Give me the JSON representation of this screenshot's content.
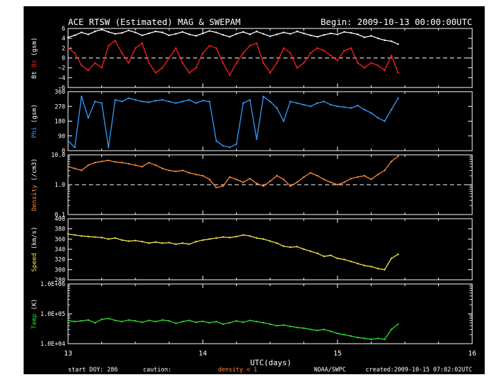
{
  "header": {
    "title": "ACE RTSW (Estimated) MAG & SWEPAM",
    "begin": "Begin: 2009-10-13 00:00:00UTC"
  },
  "footer": {
    "start_doy": "start DOY: 286",
    "caution": "caution:",
    "density_note": "density < 1",
    "agency": "NOAA/SWPC",
    "created": "created:2009-10-15 07:02:02UTC"
  },
  "colors": {
    "bt": "#ffffff",
    "bz": "#ff2020",
    "phi": "#33a0ff",
    "density": "#ff8c3a",
    "speed": "#f2e64a",
    "temp": "#33dd33",
    "axes": "#ffffff",
    "background": "#000000"
  },
  "chart_data": {
    "type": "line",
    "xlabel": "UTC(days)",
    "xlim": [
      13,
      16
    ],
    "x_ticks": [
      "13",
      "14",
      "15",
      "16"
    ],
    "panels": [
      {
        "id": "mag",
        "ylabel_parts": [
          {
            "text": "Bt",
            "color": "#ffffff"
          },
          {
            "text": "Bz",
            "color": "#ff2020"
          },
          {
            "text": "(gsm)",
            "color": "#ffffff"
          }
        ],
        "scale": "linear",
        "ylim": [
          -6,
          6
        ],
        "ticks": [
          {
            "v": 6,
            "label": "6"
          },
          {
            "v": 4,
            "label": "4"
          },
          {
            "v": 2,
            "label": "2"
          },
          {
            "v": 0,
            "label": "0"
          },
          {
            "v": -2,
            "label": "−2"
          },
          {
            "v": -4,
            "label": "−4"
          },
          {
            "v": -6,
            "label": "−6"
          }
        ],
        "ref_line": 0,
        "series": [
          {
            "name": "Bt",
            "color": "#ffffff",
            "x": [
              13.0,
              13.05,
              13.1,
              13.15,
              13.2,
              13.25,
              13.3,
              13.35,
              13.4,
              13.45,
              13.5,
              13.55,
              13.6,
              13.65,
              13.7,
              13.75,
              13.8,
              13.85,
              13.9,
              13.95,
              14.0,
              14.05,
              14.1,
              14.15,
              14.2,
              14.25,
              14.3,
              14.35,
              14.4,
              14.45,
              14.5,
              14.55,
              14.6,
              14.65,
              14.7,
              14.75,
              14.8,
              14.85,
              14.9,
              14.95,
              15.0,
              15.05,
              15.1,
              15.15,
              15.2,
              15.25,
              15.3,
              15.35,
              15.4,
              15.45
            ],
            "y": [
              4.2,
              4.6,
              5.2,
              4.8,
              5.4,
              5.8,
              5.3,
              4.9,
              5.1,
              5.6,
              5.2,
              4.6,
              5.0,
              5.4,
              5.2,
              4.6,
              4.9,
              5.3,
              4.8,
              4.5,
              5.0,
              5.5,
              5.2,
              4.7,
              4.3,
              4.9,
              5.3,
              4.8,
              5.4,
              4.9,
              4.4,
              4.8,
              5.2,
              4.9,
              5.4,
              5.0,
              4.6,
              4.3,
              4.7,
              5.0,
              4.8,
              5.3,
              5.1,
              4.8,
              4.2,
              4.5,
              4.0,
              3.6,
              3.4,
              2.8
            ]
          },
          {
            "name": "Bz",
            "color": "#ff2020",
            "x": [
              13.0,
              13.05,
              13.1,
              13.15,
              13.2,
              13.25,
              13.3,
              13.35,
              13.4,
              13.45,
              13.5,
              13.55,
              13.6,
              13.65,
              13.7,
              13.75,
              13.8,
              13.85,
              13.9,
              13.95,
              14.0,
              14.05,
              14.1,
              14.15,
              14.2,
              14.25,
              14.3,
              14.35,
              14.4,
              14.45,
              14.5,
              14.55,
              14.6,
              14.65,
              14.7,
              14.75,
              14.8,
              14.85,
              14.9,
              14.95,
              15.0,
              15.05,
              15.1,
              15.15,
              15.2,
              15.25,
              15.3,
              15.35,
              15.4,
              15.45
            ],
            "y": [
              2.0,
              1.0,
              -1.5,
              -2.5,
              -1.0,
              -2.0,
              2.5,
              3.5,
              1.0,
              -1.0,
              2.0,
              3.0,
              -1.0,
              -3.0,
              -2.0,
              0.0,
              2.0,
              -1.0,
              -3.0,
              -2.0,
              1.0,
              2.5,
              2.0,
              -1.0,
              -3.5,
              -1.0,
              1.0,
              2.5,
              3.0,
              -1.0,
              -3.0,
              -1.0,
              2.0,
              1.0,
              -2.0,
              -1.0,
              1.0,
              2.0,
              1.5,
              0.5,
              -0.5,
              1.5,
              2.0,
              -1.0,
              -2.0,
              -1.0,
              -1.5,
              -2.5,
              0.5,
              -3.0
            ]
          }
        ]
      },
      {
        "id": "phi",
        "ylabel_parts": [
          {
            "text": "Phi",
            "color": "#33a0ff"
          },
          {
            "text": "(gsm)",
            "color": "#ffffff"
          }
        ],
        "scale": "linear",
        "ylim": [
          0,
          360
        ],
        "ticks": [
          {
            "v": 360,
            "label": "360"
          },
          {
            "v": 270,
            "label": "270"
          },
          {
            "v": 180,
            "label": "180"
          },
          {
            "v": 90,
            "label": "90"
          },
          {
            "v": 0,
            "label": "0"
          }
        ],
        "series": [
          {
            "name": "Phi",
            "color": "#33a0ff",
            "x": [
              13.0,
              13.05,
              13.1,
              13.15,
              13.2,
              13.25,
              13.3,
              13.35,
              13.4,
              13.45,
              13.5,
              13.55,
              13.6,
              13.65,
              13.7,
              13.75,
              13.8,
              13.85,
              13.9,
              13.95,
              14.0,
              14.05,
              14.1,
              14.15,
              14.2,
              14.25,
              14.3,
              14.35,
              14.4,
              14.45,
              14.5,
              14.55,
              14.6,
              14.65,
              14.7,
              14.75,
              14.8,
              14.85,
              14.9,
              14.95,
              15.0,
              15.05,
              15.1,
              15.15,
              15.2,
              15.25,
              15.3,
              15.35,
              15.4,
              15.45
            ],
            "y": [
              60,
              20,
              330,
              200,
              300,
              290,
              20,
              310,
              300,
              320,
              310,
              300,
              295,
              305,
              310,
              300,
              290,
              300,
              310,
              290,
              305,
              300,
              60,
              30,
              20,
              40,
              290,
              310,
              70,
              330,
              300,
              260,
              180,
              300,
              290,
              280,
              270,
              290,
              300,
              280,
              270,
              265,
              260,
              275,
              250,
              230,
              200,
              180,
              250,
              320
            ]
          }
        ]
      },
      {
        "id": "density",
        "ylabel_parts": [
          {
            "text": "Density",
            "color": "#ff8c3a"
          },
          {
            "text": "(/cm3)",
            "color": "#ffffff"
          }
        ],
        "scale": "log",
        "ylim": [
          0.1,
          10.0
        ],
        "ticks": [
          {
            "v": 10,
            "label": "10.0"
          },
          {
            "v": 1,
            "label": "1.0"
          },
          {
            "v": 0.1,
            "label": "0.1"
          }
        ],
        "ref_line": 1,
        "series": [
          {
            "name": "Density",
            "color": "#ff8c3a",
            "x": [
              13.0,
              13.05,
              13.1,
              13.15,
              13.2,
              13.25,
              13.3,
              13.35,
              13.4,
              13.45,
              13.5,
              13.55,
              13.6,
              13.65,
              13.7,
              13.75,
              13.8,
              13.85,
              13.9,
              13.95,
              14.0,
              14.05,
              14.1,
              14.15,
              14.2,
              14.25,
              14.3,
              14.35,
              14.4,
              14.45,
              14.5,
              14.55,
              14.6,
              14.65,
              14.7,
              14.75,
              14.8,
              14.85,
              14.9,
              14.95,
              15.0,
              15.05,
              15.1,
              15.15,
              15.2,
              15.25,
              15.3,
              15.35,
              15.4,
              15.45
            ],
            "y": [
              4.0,
              3.5,
              3.0,
              4.5,
              5.5,
              6.0,
              6.5,
              5.8,
              5.5,
              5.0,
              4.5,
              4.0,
              5.5,
              4.5,
              3.5,
              3.0,
              2.8,
              3.0,
              2.5,
              2.2,
              2.0,
              1.5,
              0.8,
              0.9,
              1.8,
              1.5,
              1.2,
              1.6,
              1.1,
              0.9,
              1.3,
              2.0,
              1.5,
              0.9,
              1.2,
              1.8,
              2.5,
              2.0,
              1.5,
              1.2,
              1.0,
              1.2,
              1.6,
              1.8,
              2.0,
              1.5,
              2.2,
              3.0,
              6.0,
              9.0
            ]
          }
        ]
      },
      {
        "id": "speed",
        "ylabel_parts": [
          {
            "text": "Speed",
            "color": "#f2e64a"
          },
          {
            "text": "(km/s)",
            "color": "#ffffff"
          }
        ],
        "scale": "linear",
        "ylim": [
          280,
          400
        ],
        "ticks": [
          {
            "v": 400,
            "label": "400"
          },
          {
            "v": 380,
            "label": "380"
          },
          {
            "v": 360,
            "label": "360"
          },
          {
            "v": 340,
            "label": "340"
          },
          {
            "v": 320,
            "label": "320"
          },
          {
            "v": 300,
            "label": "300"
          },
          {
            "v": 280,
            "label": "280"
          }
        ],
        "series": [
          {
            "name": "Speed",
            "color": "#f2e64a",
            "x": [
              13.0,
              13.05,
              13.1,
              13.15,
              13.2,
              13.25,
              13.3,
              13.35,
              13.4,
              13.45,
              13.5,
              13.55,
              13.6,
              13.65,
              13.7,
              13.75,
              13.8,
              13.85,
              13.9,
              13.95,
              14.0,
              14.05,
              14.1,
              14.15,
              14.2,
              14.25,
              14.3,
              14.35,
              14.4,
              14.45,
              14.5,
              14.55,
              14.6,
              14.65,
              14.7,
              14.75,
              14.8,
              14.85,
              14.9,
              14.95,
              15.0,
              15.05,
              15.1,
              15.15,
              15.2,
              15.25,
              15.3,
              15.35,
              15.4,
              15.45
            ],
            "y": [
              370,
              368,
              366,
              365,
              364,
              363,
              360,
              362,
              358,
              356,
              357,
              355,
              352,
              354,
              352,
              353,
              350,
              352,
              350,
              355,
              358,
              360,
              362,
              364,
              363,
              365,
              368,
              366,
              362,
              360,
              356,
              352,
              346,
              344,
              345,
              340,
              336,
              332,
              326,
              328,
              322,
              320,
              316,
              312,
              308,
              306,
              302,
              300,
              322,
              330
            ]
          }
        ]
      },
      {
        "id": "temp",
        "ylabel_parts": [
          {
            "text": "Temp",
            "color": "#33dd33"
          },
          {
            "text": "(K)",
            "color": "#ffffff"
          }
        ],
        "scale": "log",
        "ylim": [
          10000,
          1000000
        ],
        "ticks": [
          {
            "v": 1000000,
            "label": "1.0E+06"
          },
          {
            "v": 100000,
            "label": "1.0E+05"
          },
          {
            "v": 10000,
            "label": "1.0E+04"
          }
        ],
        "series": [
          {
            "name": "Temp",
            "color": "#33dd33",
            "x": [
              13.0,
              13.05,
              13.1,
              13.15,
              13.2,
              13.25,
              13.3,
              13.35,
              13.4,
              13.45,
              13.5,
              13.55,
              13.6,
              13.65,
              13.7,
              13.75,
              13.8,
              13.85,
              13.9,
              13.95,
              14.0,
              14.05,
              14.1,
              14.15,
              14.2,
              14.25,
              14.3,
              14.35,
              14.4,
              14.45,
              14.5,
              14.55,
              14.6,
              14.65,
              14.7,
              14.75,
              14.8,
              14.85,
              14.9,
              14.95,
              15.0,
              15.05,
              15.1,
              15.15,
              15.2,
              15.25,
              15.3,
              15.35,
              15.4,
              15.45
            ],
            "y": [
              60000,
              55000,
              58000,
              62000,
              50000,
              65000,
              70000,
              60000,
              55000,
              62000,
              58000,
              52000,
              60000,
              55000,
              62000,
              58000,
              48000,
              55000,
              60000,
              52000,
              56000,
              50000,
              55000,
              45000,
              50000,
              58000,
              52000,
              60000,
              55000,
              50000,
              45000,
              40000,
              42000,
              38000,
              35000,
              33000,
              30000,
              28000,
              30000,
              26000,
              22000,
              20000,
              18000,
              16000,
              15000,
              14000,
              15000,
              14000,
              30000,
              45000
            ]
          }
        ]
      }
    ]
  }
}
